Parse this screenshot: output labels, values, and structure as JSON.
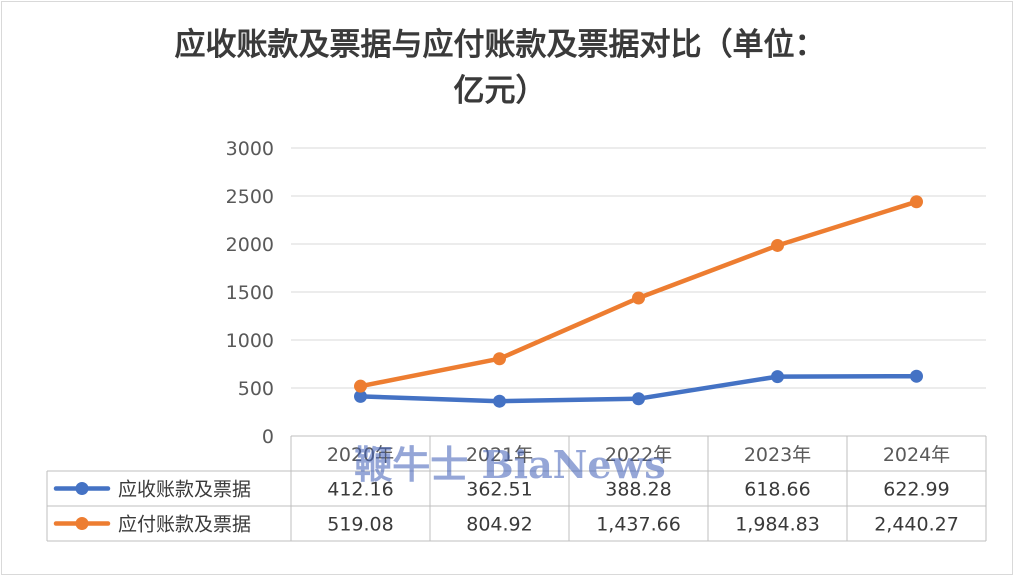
{
  "chart_data": {
    "type": "line",
    "title_lines": [
      "应收账款及票据与应付账款及票据对比（单位：",
      "亿元）"
    ],
    "categories": [
      "2020年",
      "2021年",
      "2022年",
      "2023年",
      "2024年"
    ],
    "ylim": [
      0,
      3000
    ],
    "yticks": [
      0,
      500,
      1000,
      1500,
      2000,
      2500,
      3000
    ],
    "grid": true,
    "legend": "data-table",
    "series": [
      {
        "name": "应收账款及票据",
        "color": "#4472c4",
        "values": [
          412.16,
          362.51,
          388.28,
          618.66,
          622.99
        ],
        "labels": [
          "412.16",
          "362.51",
          "388.28",
          "618.66",
          "622.99"
        ]
      },
      {
        "name": "应付账款及票据",
        "color": "#ed7d31",
        "values": [
          519.08,
          804.92,
          1437.66,
          1984.83,
          2440.27
        ],
        "labels": [
          "519.08",
          "804.92",
          "1,437.66",
          "1,984.83",
          "2,440.27"
        ]
      }
    ]
  },
  "watermark": {
    "text": "鞭牛士 BiaNews",
    "color": "#3f5fb8"
  },
  "colors": {
    "grid": "#d9d9d9",
    "table_border": "#bfbfbf"
  }
}
